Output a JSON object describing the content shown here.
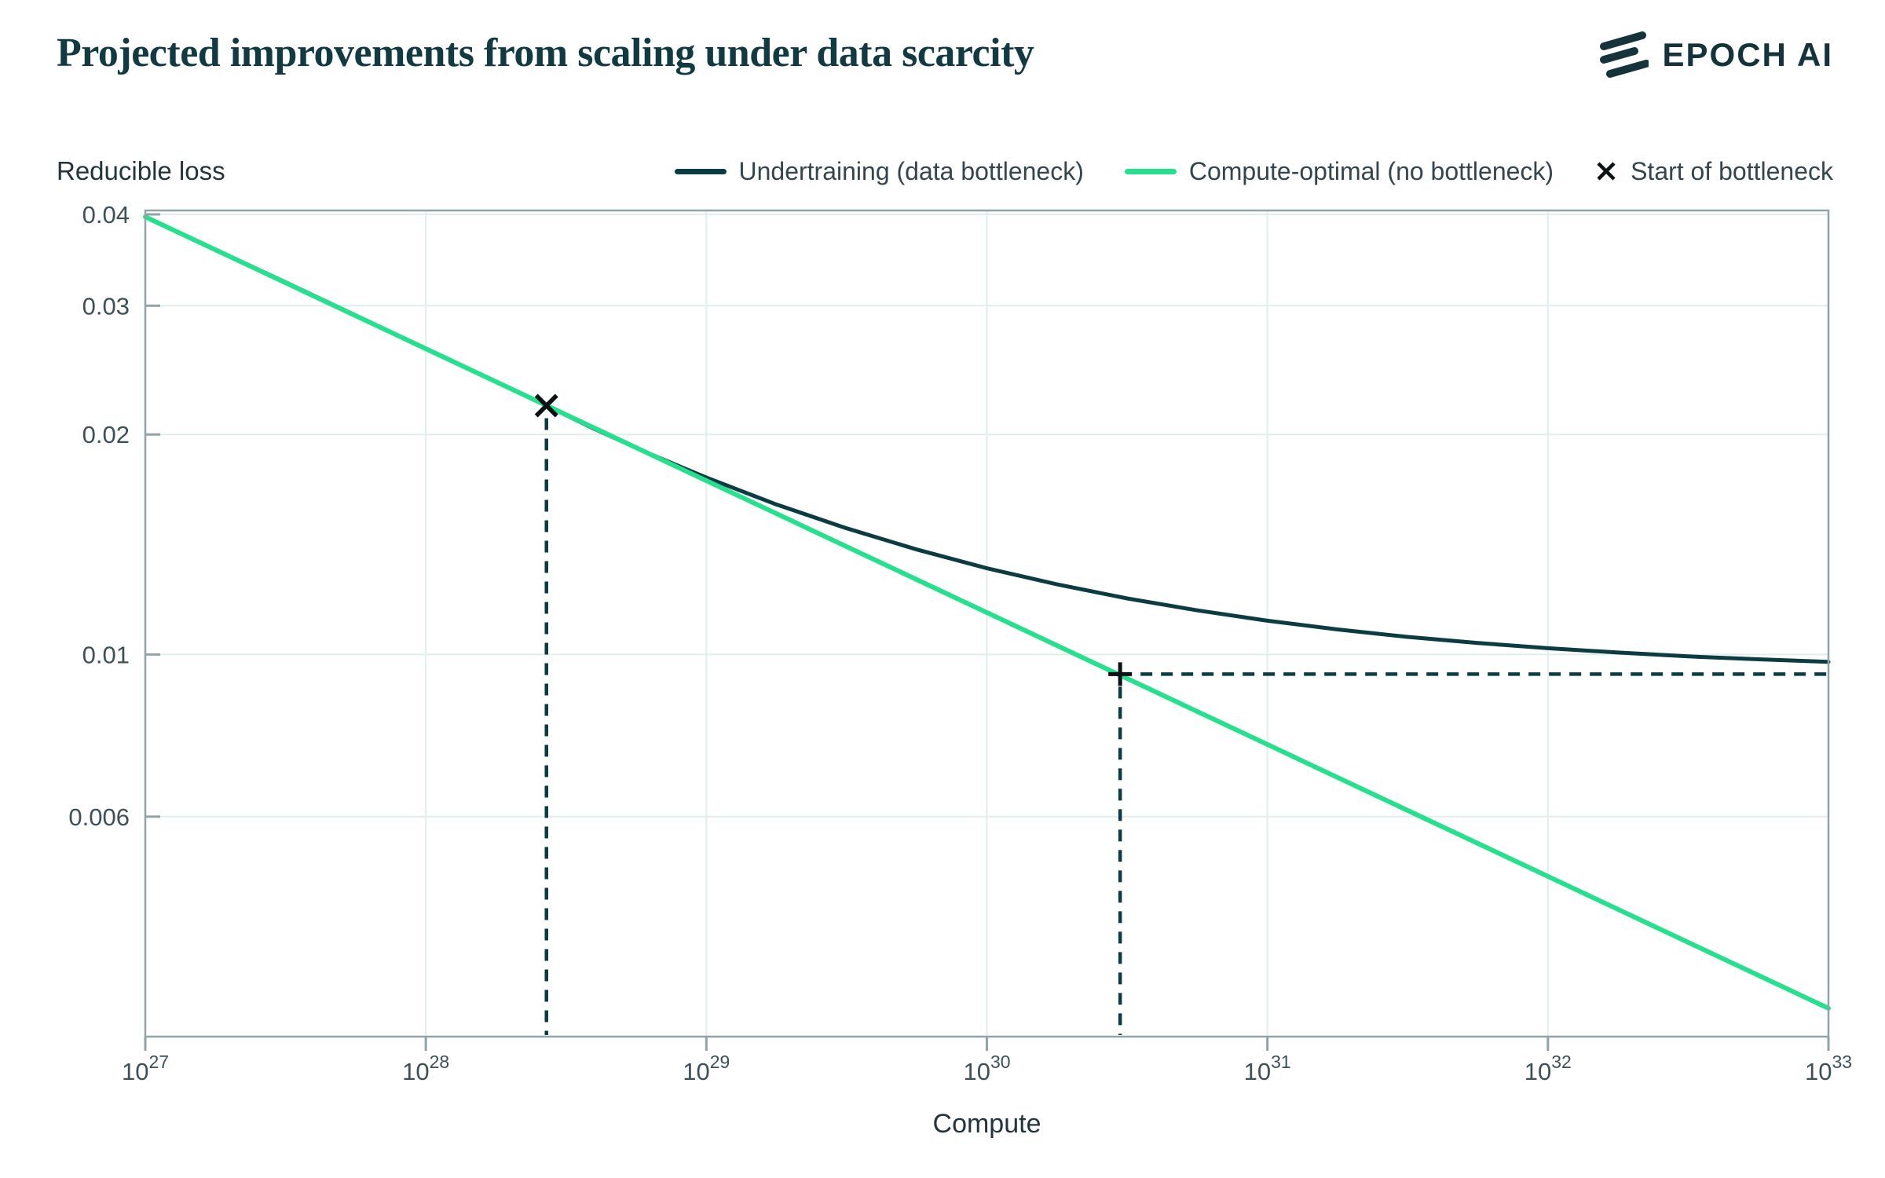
{
  "header": {
    "title": "Projected improvements from scaling under data scarcity",
    "brand": "EPOCH AI"
  },
  "chart_data": {
    "type": "line",
    "title": "Projected improvements from scaling under data scarcity",
    "xlabel": "Compute",
    "ylabel": "Reducible loss",
    "x_axis": {
      "scale": "log",
      "tick_base": "10",
      "tick_exponents": [
        27,
        28,
        29,
        30,
        31,
        32,
        33
      ],
      "xlim_exponents": [
        27,
        33
      ],
      "grid": true
    },
    "y_axis": {
      "scale": "log",
      "ticks": [
        {
          "value": 0.04,
          "label": "0.04"
        },
        {
          "value": 0.03,
          "label": "0.03"
        },
        {
          "value": 0.02,
          "label": "0.02"
        },
        {
          "value": 0.01,
          "label": "0.01"
        },
        {
          "value": 0.006,
          "label": "0.006"
        }
      ],
      "ylim": [
        0.003,
        0.0405
      ],
      "grid": true
    },
    "legend_position": "top",
    "series": [
      {
        "name": "Undertraining (data bottleneck)",
        "color": "#0b3c44",
        "width": 5,
        "points": [
          [
            27.0,
            0.0397
          ],
          [
            27.25,
            0.0358
          ],
          [
            27.5,
            0.0323
          ],
          [
            27.75,
            0.0291
          ],
          [
            28.0,
            0.0262
          ],
          [
            28.2,
            0.0241
          ],
          [
            28.43,
            0.0219
          ],
          [
            28.6,
            0.02036
          ],
          [
            28.8,
            0.0188
          ],
          [
            29.0,
            0.01746
          ],
          [
            29.25,
            0.01604
          ],
          [
            29.5,
            0.01488
          ],
          [
            29.75,
            0.01392
          ],
          [
            30.0,
            0.01312
          ],
          [
            30.25,
            0.01247
          ],
          [
            30.5,
            0.01193
          ],
          [
            30.75,
            0.01149
          ],
          [
            31.0,
            0.01112
          ],
          [
            31.25,
            0.01082
          ],
          [
            31.5,
            0.01057
          ],
          [
            31.75,
            0.01037
          ],
          [
            32.0,
            0.0102
          ],
          [
            32.25,
            0.01006
          ],
          [
            32.5,
            0.00994
          ],
          [
            32.75,
            0.00985
          ],
          [
            33.0,
            0.00977
          ]
        ]
      },
      {
        "name": "Compute-optimal (no bottleneck)",
        "color": "#27e08d",
        "width": 6,
        "points": [
          [
            27.0,
            0.0397
          ],
          [
            33.0,
            0.00328
          ]
        ]
      }
    ],
    "markers": {
      "bottleneck_start": {
        "label": "Start of bottleneck",
        "symbol": "x",
        "x_exponent": 28.43,
        "value": 0.0219
      },
      "compute_equivalent": {
        "symbol": "+",
        "x_exponent": 30.475,
        "value": 0.0094
      }
    },
    "annotations": {
      "vertical_dashed": [
        {
          "x_exponent": 28.43,
          "from_value": 0.0219
        },
        {
          "x_exponent": 30.475,
          "from_value": 0.0094
        }
      ],
      "horizontal_dashed": {
        "value": 0.0094,
        "from_exponent": 30.475,
        "to_exponent": 33
      }
    },
    "colors": {
      "grid": "#e2eded",
      "axis": "#8fa3a8",
      "tick_text": "#3c5058",
      "axis_label_text": "#22353d",
      "annotation": "#0b3c44",
      "marker": "#0c1114",
      "brand_dark": "#14333b",
      "title": "#123a42"
    }
  }
}
